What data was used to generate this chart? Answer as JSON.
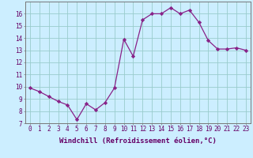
{
  "x": [
    0,
    1,
    2,
    3,
    4,
    5,
    6,
    7,
    8,
    9,
    10,
    11,
    12,
    13,
    14,
    15,
    16,
    17,
    18,
    19,
    20,
    21,
    22,
    23
  ],
  "y": [
    9.9,
    9.6,
    9.2,
    8.8,
    8.5,
    7.3,
    8.6,
    8.1,
    8.7,
    9.9,
    13.9,
    12.5,
    15.5,
    16.0,
    16.0,
    16.5,
    16.0,
    16.3,
    15.3,
    13.8,
    13.1,
    13.1,
    13.2,
    13.0
  ],
  "line_color": "#882288",
  "marker": "D",
  "markersize": 2.2,
  "linewidth": 0.9,
  "bg_color": "#cceeff",
  "grid_color": "#99cccc",
  "xlim": [
    -0.5,
    23.5
  ],
  "ylim": [
    7,
    17
  ],
  "yticks": [
    7,
    8,
    9,
    10,
    11,
    12,
    13,
    14,
    15,
    16
  ],
  "xlabel": "Windchill (Refroidissement éolien,°C)",
  "xlabel_fontsize": 6.5,
  "tick_fontsize": 5.5,
  "label_color": "#660066",
  "spine_color": "#777777"
}
